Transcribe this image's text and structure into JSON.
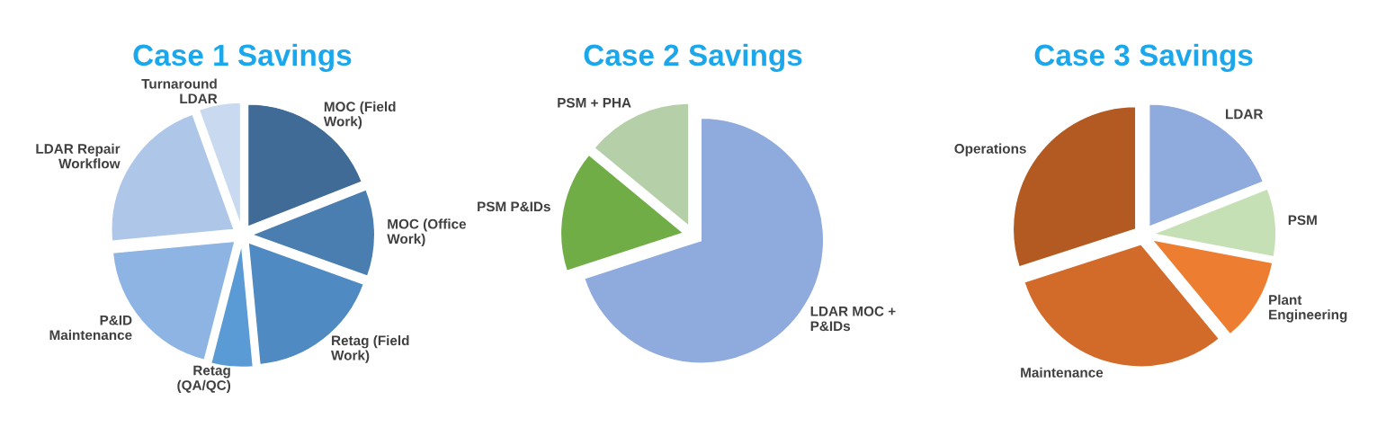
{
  "chart_data": [
    {
      "type": "pie",
      "title": "Case 1 Savings",
      "categories": [
        "MOC (Field\nWork)",
        "MOC (Office\nWork)",
        "Retag (Field\nWork)",
        "Retag\n(QA/QC)",
        "P&ID\nMaintenance",
        "LDAR Repair\nWorkflow",
        "Turnaround\nLDAR"
      ],
      "values": [
        19,
        11.5,
        18,
        5.5,
        19.5,
        21,
        5.5
      ],
      "colors": [
        "#3f6b96",
        "#4a7eb0",
        "#4f8ac2",
        "#5b9bd5",
        "#8eb4e3",
        "#aec7e8",
        "#c9d9ef"
      ]
    },
    {
      "type": "pie",
      "title": "Case 2 Savings",
      "categories": [
        "LDAR MOC +\nP&IDs",
        "PSM P&IDs",
        "PSM + PHA"
      ],
      "values": [
        70,
        16,
        14
      ],
      "colors": [
        "#8faadc",
        "#70ad47",
        "#b5cfa8"
      ]
    },
    {
      "type": "pie",
      "title": "Case 3 Savings",
      "categories": [
        "LDAR",
        "PSM",
        "Plant\nEngineering",
        "Maintenance",
        "Operations"
      ],
      "values": [
        19,
        9,
        11,
        31,
        30
      ],
      "colors": [
        "#8faadc",
        "#c5e0b4",
        "#ed7d31",
        "#d26b2a",
        "#b35a22"
      ]
    }
  ]
}
